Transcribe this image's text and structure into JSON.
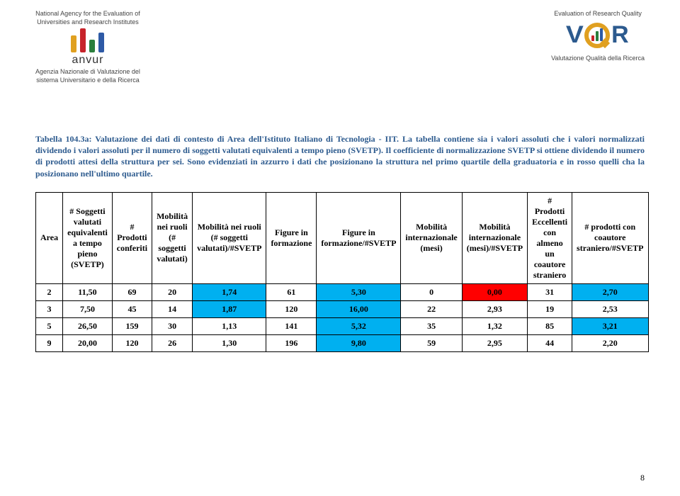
{
  "header": {
    "left_top1": "National Agency for the Evaluation of",
    "left_top2": "Universities and Research Institutes",
    "right_top": "Evaluation of Research Quality",
    "anvur": "anvur",
    "left_sub1": "Agenzia Nazionale di Valutazione del",
    "left_sub2": "sistema Universitario e della Ricerca",
    "right_sub": "Valutazione Qualità della Ricerca"
  },
  "caption": "Tabella 104.3a: Valutazione dei dati di contesto di Area dell'Istituto Italiano di Tecnologia - IIT. La tabella contiene sia i valori assoluti che i valori normalizzati dividendo i valori assoluti per il numero di soggetti valutati equivalenti a tempo pieno (SVETP). Il coefficiente di normalizzazione SVETP si ottiene dividendo il numero di prodotti attesi della struttura per sei. Sono evidenziati in azzurro i dati che posizionano la struttura nel primo quartile della graduatoria e in rosso quelli cha la posizionano nell'ultimo quartile.",
  "table": {
    "columns": [
      "Area",
      "# Soggetti valutati equivalenti a tempo pieno (SVETP)",
      "# Prodotti conferiti",
      "Mobilità nei ruoli (# soggetti valutati)",
      "Mobilità nei ruoli (# soggetti valutati)/#SVETP",
      "Figure in formazione",
      "Figure in formazione/#SVETP",
      "Mobilità internazionale (mesi)",
      "Mobilità internazionale (mesi)/#SVETP",
      "# Prodotti Eccellenti con almeno un coautore straniero",
      "# prodotti con coautore straniero/#SVETP"
    ],
    "rows": [
      {
        "cells": [
          "2",
          "11,50",
          "69",
          "20",
          "1,74",
          "61",
          "5,30",
          "0",
          "0,00",
          "31",
          "2,70"
        ],
        "hl": [
          null,
          null,
          null,
          null,
          "blue",
          null,
          "blue",
          null,
          "red",
          null,
          "blue"
        ]
      },
      {
        "cells": [
          "3",
          "7,50",
          "45",
          "14",
          "1,87",
          "120",
          "16,00",
          "22",
          "2,93",
          "19",
          "2,53"
        ],
        "hl": [
          null,
          null,
          null,
          null,
          "blue",
          null,
          "blue",
          null,
          null,
          null,
          null
        ]
      },
      {
        "cells": [
          "5",
          "26,50",
          "159",
          "30",
          "1,13",
          "141",
          "5,32",
          "35",
          "1,32",
          "85",
          "3,21"
        ],
        "hl": [
          null,
          null,
          null,
          null,
          null,
          null,
          "blue",
          null,
          null,
          null,
          "blue"
        ]
      },
      {
        "cells": [
          "9",
          "20,00",
          "120",
          "26",
          "1,30",
          "196",
          "9,80",
          "59",
          "2,95",
          "44",
          "2,20"
        ],
        "hl": [
          null,
          null,
          null,
          null,
          null,
          null,
          "blue",
          null,
          null,
          null,
          null
        ]
      }
    ],
    "colors": {
      "blue": "#00b0f0",
      "red": "#ff0000"
    }
  },
  "page_number": "8"
}
